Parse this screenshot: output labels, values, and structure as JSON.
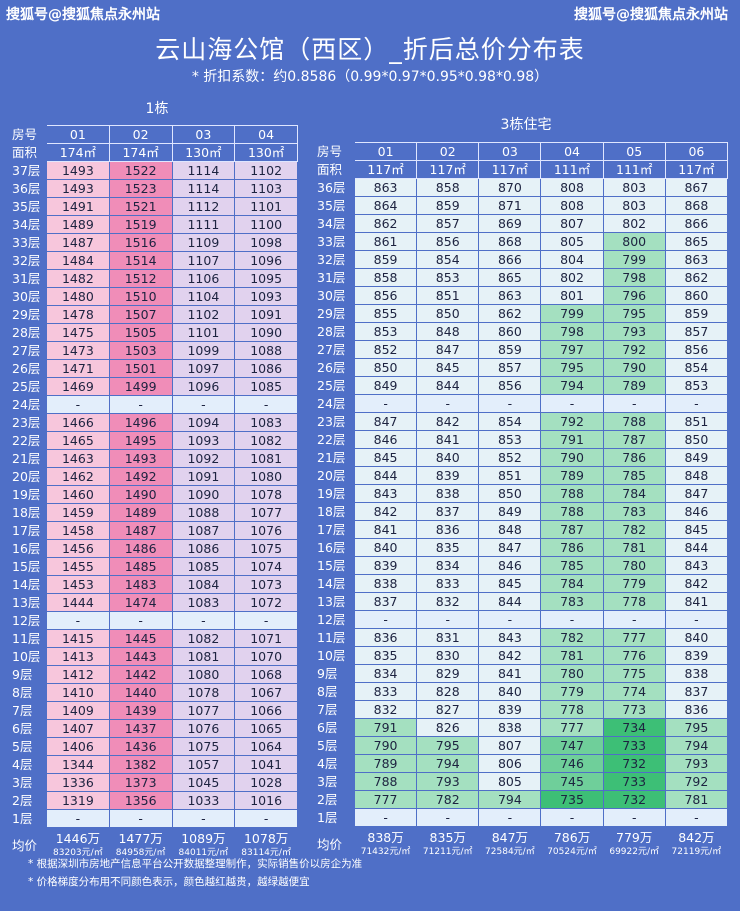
{
  "watermark_left": "搜狐号@搜狐焦点永州站",
  "watermark_right": "搜狐号@搜狐焦点永州站",
  "title": "云山海公馆（西区）_折后总价分布表",
  "subtitle": "* 折扣系数：约0.8586（0.99*0.97*0.95*0.98*0.98）",
  "row_labels": {
    "room": "房号",
    "area": "面积",
    "avg": "均价"
  },
  "building1": {
    "name": "1栋",
    "units": [
      "01",
      "02",
      "03",
      "04"
    ],
    "areas": [
      "174㎡",
      "174㎡",
      "130㎡",
      "130㎡"
    ],
    "rows": [
      {
        "floor": "37层",
        "v": [
          "1493",
          "1522",
          "1114",
          "1102"
        ]
      },
      {
        "floor": "36层",
        "v": [
          "1493",
          "1523",
          "1114",
          "1103"
        ]
      },
      {
        "floor": "35层",
        "v": [
          "1491",
          "1521",
          "1112",
          "1101"
        ]
      },
      {
        "floor": "34层",
        "v": [
          "1489",
          "1519",
          "1111",
          "1100"
        ]
      },
      {
        "floor": "33层",
        "v": [
          "1487",
          "1516",
          "1109",
          "1098"
        ]
      },
      {
        "floor": "32层",
        "v": [
          "1484",
          "1514",
          "1107",
          "1096"
        ]
      },
      {
        "floor": "31层",
        "v": [
          "1482",
          "1512",
          "1106",
          "1095"
        ]
      },
      {
        "floor": "30层",
        "v": [
          "1480",
          "1510",
          "1104",
          "1093"
        ]
      },
      {
        "floor": "29层",
        "v": [
          "1478",
          "1507",
          "1102",
          "1091"
        ]
      },
      {
        "floor": "28层",
        "v": [
          "1475",
          "1505",
          "1101",
          "1090"
        ]
      },
      {
        "floor": "27层",
        "v": [
          "1473",
          "1503",
          "1099",
          "1088"
        ]
      },
      {
        "floor": "26层",
        "v": [
          "1471",
          "1501",
          "1097",
          "1086"
        ]
      },
      {
        "floor": "25层",
        "v": [
          "1469",
          "1499",
          "1096",
          "1085"
        ]
      },
      {
        "floor": "24层",
        "v": [
          "-",
          "-",
          "-",
          "-"
        ]
      },
      {
        "floor": "23层",
        "v": [
          "1466",
          "1496",
          "1094",
          "1083"
        ]
      },
      {
        "floor": "22层",
        "v": [
          "1465",
          "1495",
          "1093",
          "1082"
        ]
      },
      {
        "floor": "21层",
        "v": [
          "1463",
          "1493",
          "1092",
          "1081"
        ]
      },
      {
        "floor": "20层",
        "v": [
          "1462",
          "1492",
          "1091",
          "1080"
        ]
      },
      {
        "floor": "19层",
        "v": [
          "1460",
          "1490",
          "1090",
          "1078"
        ]
      },
      {
        "floor": "18层",
        "v": [
          "1459",
          "1489",
          "1088",
          "1077"
        ]
      },
      {
        "floor": "17层",
        "v": [
          "1458",
          "1487",
          "1087",
          "1076"
        ]
      },
      {
        "floor": "16层",
        "v": [
          "1456",
          "1486",
          "1086",
          "1075"
        ]
      },
      {
        "floor": "15层",
        "v": [
          "1455",
          "1485",
          "1085",
          "1074"
        ]
      },
      {
        "floor": "14层",
        "v": [
          "1453",
          "1483",
          "1084",
          "1073"
        ]
      },
      {
        "floor": "13层",
        "v": [
          "1444",
          "1474",
          "1083",
          "1072"
        ]
      },
      {
        "floor": "12层",
        "v": [
          "-",
          "-",
          "-",
          "-"
        ]
      },
      {
        "floor": "11层",
        "v": [
          "1415",
          "1445",
          "1082",
          "1071"
        ]
      },
      {
        "floor": "10层",
        "v": [
          "1413",
          "1443",
          "1081",
          "1070"
        ]
      },
      {
        "floor": "9层",
        "v": [
          "1412",
          "1442",
          "1080",
          "1068"
        ]
      },
      {
        "floor": "8层",
        "v": [
          "1410",
          "1440",
          "1078",
          "1067"
        ]
      },
      {
        "floor": "7层",
        "v": [
          "1409",
          "1439",
          "1077",
          "1066"
        ]
      },
      {
        "floor": "6层",
        "v": [
          "1407",
          "1437",
          "1076",
          "1065"
        ]
      },
      {
        "floor": "5层",
        "v": [
          "1406",
          "1436",
          "1075",
          "1064"
        ]
      },
      {
        "floor": "4层",
        "v": [
          "1344",
          "1382",
          "1057",
          "1041"
        ]
      },
      {
        "floor": "3层",
        "v": [
          "1336",
          "1373",
          "1045",
          "1028"
        ]
      },
      {
        "floor": "2层",
        "v": [
          "1319",
          "1356",
          "1033",
          "1016"
        ]
      },
      {
        "floor": "1层",
        "v": [
          "-",
          "-",
          "-",
          "-"
        ]
      }
    ],
    "avg_total": [
      "1446万",
      "1477万",
      "1089万",
      "1078万"
    ],
    "avg_unit": [
      "83203元/㎡",
      "84958元/㎡",
      "84011元/㎡",
      "83114元/㎡"
    ]
  },
  "building3": {
    "name": "3栋住宅",
    "units": [
      "01",
      "02",
      "03",
      "04",
      "05",
      "06"
    ],
    "areas": [
      "117㎡",
      "117㎡",
      "117㎡",
      "111㎡",
      "111㎡",
      "117㎡"
    ],
    "rows": [
      {
        "floor": "36层",
        "v": [
          "863",
          "858",
          "870",
          "808",
          "803",
          "867"
        ]
      },
      {
        "floor": "35层",
        "v": [
          "864",
          "859",
          "871",
          "808",
          "803",
          "868"
        ]
      },
      {
        "floor": "34层",
        "v": [
          "862",
          "857",
          "869",
          "807",
          "802",
          "866"
        ]
      },
      {
        "floor": "33层",
        "v": [
          "861",
          "856",
          "868",
          "805",
          "800",
          "865"
        ]
      },
      {
        "floor": "32层",
        "v": [
          "859",
          "854",
          "866",
          "804",
          "799",
          "863"
        ]
      },
      {
        "floor": "31层",
        "v": [
          "858",
          "853",
          "865",
          "802",
          "798",
          "862"
        ]
      },
      {
        "floor": "30层",
        "v": [
          "856",
          "851",
          "863",
          "801",
          "796",
          "860"
        ]
      },
      {
        "floor": "29层",
        "v": [
          "855",
          "850",
          "862",
          "799",
          "795",
          "859"
        ]
      },
      {
        "floor": "28层",
        "v": [
          "853",
          "848",
          "860",
          "798",
          "793",
          "857"
        ]
      },
      {
        "floor": "27层",
        "v": [
          "852",
          "847",
          "859",
          "797",
          "792",
          "856"
        ]
      },
      {
        "floor": "26层",
        "v": [
          "850",
          "845",
          "857",
          "795",
          "790",
          "854"
        ]
      },
      {
        "floor": "25层",
        "v": [
          "849",
          "844",
          "856",
          "794",
          "789",
          "853"
        ]
      },
      {
        "floor": "24层",
        "v": [
          "-",
          "-",
          "-",
          "-",
          "-",
          "-"
        ]
      },
      {
        "floor": "23层",
        "v": [
          "847",
          "842",
          "854",
          "792",
          "788",
          "851"
        ]
      },
      {
        "floor": "22层",
        "v": [
          "846",
          "841",
          "853",
          "791",
          "787",
          "850"
        ]
      },
      {
        "floor": "21层",
        "v": [
          "845",
          "840",
          "852",
          "790",
          "786",
          "849"
        ]
      },
      {
        "floor": "20层",
        "v": [
          "844",
          "839",
          "851",
          "789",
          "785",
          "848"
        ]
      },
      {
        "floor": "19层",
        "v": [
          "843",
          "838",
          "850",
          "788",
          "784",
          "847"
        ]
      },
      {
        "floor": "18层",
        "v": [
          "842",
          "837",
          "849",
          "788",
          "783",
          "846"
        ]
      },
      {
        "floor": "17层",
        "v": [
          "841",
          "836",
          "848",
          "787",
          "782",
          "845"
        ]
      },
      {
        "floor": "16层",
        "v": [
          "840",
          "835",
          "847",
          "786",
          "781",
          "844"
        ]
      },
      {
        "floor": "15层",
        "v": [
          "839",
          "834",
          "846",
          "785",
          "780",
          "843"
        ]
      },
      {
        "floor": "14层",
        "v": [
          "838",
          "833",
          "845",
          "784",
          "779",
          "842"
        ]
      },
      {
        "floor": "13层",
        "v": [
          "837",
          "832",
          "844",
          "783",
          "778",
          "841"
        ]
      },
      {
        "floor": "12层",
        "v": [
          "-",
          "-",
          "-",
          "-",
          "-",
          "-"
        ]
      },
      {
        "floor": "11层",
        "v": [
          "836",
          "831",
          "843",
          "782",
          "777",
          "840"
        ]
      },
      {
        "floor": "10层",
        "v": [
          "835",
          "830",
          "842",
          "781",
          "776",
          "839"
        ]
      },
      {
        "floor": "9层",
        "v": [
          "834",
          "829",
          "841",
          "780",
          "775",
          "838"
        ]
      },
      {
        "floor": "8层",
        "v": [
          "833",
          "828",
          "840",
          "779",
          "774",
          "837"
        ]
      },
      {
        "floor": "7层",
        "v": [
          "832",
          "827",
          "839",
          "778",
          "773",
          "836"
        ]
      },
      {
        "floor": "6层",
        "v": [
          "791",
          "826",
          "838",
          "777",
          "734",
          "795"
        ]
      },
      {
        "floor": "5层",
        "v": [
          "790",
          "795",
          "807",
          "747",
          "733",
          "794"
        ]
      },
      {
        "floor": "4层",
        "v": [
          "789",
          "794",
          "806",
          "746",
          "732",
          "793"
        ]
      },
      {
        "floor": "3层",
        "v": [
          "788",
          "793",
          "805",
          "745",
          "733",
          "792"
        ]
      },
      {
        "floor": "2层",
        "v": [
          "777",
          "782",
          "794",
          "735",
          "732",
          "781"
        ]
      },
      {
        "floor": "1层",
        "v": [
          "-",
          "-",
          "-",
          "-",
          "-",
          "-"
        ]
      }
    ],
    "avg_total": [
      "838万",
      "835万",
      "847万",
      "786万",
      "779万",
      "842万"
    ],
    "avg_unit": [
      "71432元/㎡",
      "71211元/㎡",
      "72584元/㎡",
      "70524元/㎡",
      "69922元/㎡",
      "72119元/㎡"
    ]
  },
  "notes": [
    "* 根据深圳市房地产信息平台公开数据整理制作，实际销售价以房企为准",
    "* 价格梯度分布用不同颜色表示，颜色越红越贵，越绿越便宜"
  ],
  "colors": {
    "background": "#4f6fc7",
    "empty_row": "#e3eefb",
    "b1_pink_light": "#f7c6dc",
    "b1_pink_deep": "#f08db8",
    "b1_lavender": "#e1d2ee",
    "b3_pale": "#e6f2f7",
    "b3_green_light": "#a4e0c0",
    "b3_green": "#6fcf9a",
    "b3_green_deep": "#3dbf76"
  }
}
